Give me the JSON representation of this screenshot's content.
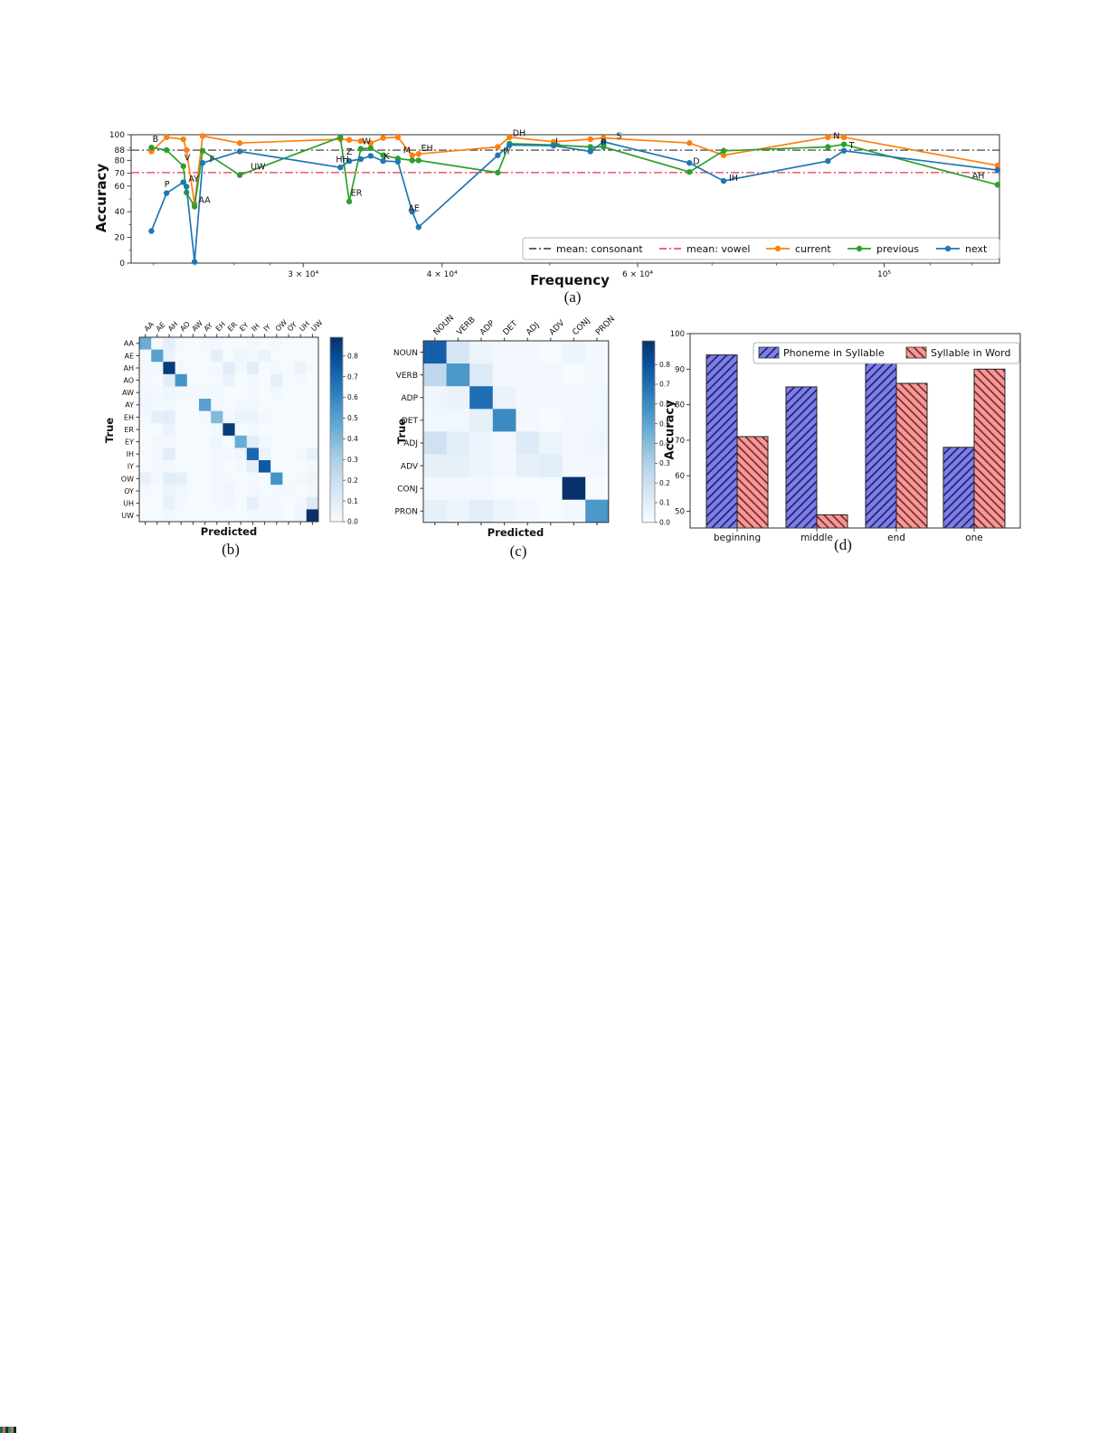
{
  "panel_a": {
    "caption": "(a)",
    "xlabel": "Frequency",
    "ylabel": "Accuracy",
    "yticks": [
      0,
      20,
      40,
      60,
      70,
      80,
      88,
      100
    ],
    "yticks_minor": [
      10,
      30,
      50,
      90
    ],
    "xticks": [
      {
        "f": 30000,
        "label": "3 × 10⁴"
      },
      {
        "f": 40000,
        "label": "4 × 10⁴"
      },
      {
        "f": 60000,
        "label": "6 × 10⁴"
      },
      {
        "f": 100000,
        "label": "10⁵"
      }
    ],
    "xticks_minor": [
      22000,
      24000,
      26000,
      28000,
      50000,
      70000,
      80000,
      90000,
      110000,
      120000
    ],
    "xlim": [
      21000,
      127000
    ],
    "ylim": [
      0,
      100
    ],
    "mean_consonant": 88,
    "mean_vowel": 70.5,
    "legend": [
      "mean: consonant",
      "mean: vowel",
      "current",
      "previous",
      "next"
    ],
    "colors": {
      "current": "#ff7f0e",
      "previous": "#2ca02c",
      "next": "#1f77b4",
      "mean_consonant": "#333333",
      "mean_vowel": "#e8324a"
    },
    "chart_data": {
      "type": "line",
      "x_frequency": [
        21900,
        22600,
        23400,
        23550,
        23950,
        24350,
        26300,
        32400,
        33000,
        33800,
        34500,
        35400,
        36500,
        37600,
        38100,
        44900,
        46000,
        50400,
        54400,
        55900,
        66800,
        71700,
        89000,
        92000,
        126500
      ],
      "series": [
        {
          "name": "current",
          "values": [
            87,
            98,
            96.5,
            88,
            46,
            99,
            93.5,
            96.5,
            96,
            95,
            93.5,
            97.5,
            98,
            84,
            85,
            90.5,
            98,
            94.5,
            96.5,
            97.5,
            93.5,
            84,
            98,
            98,
            76
          ]
        },
        {
          "name": "previous",
          "values": [
            90,
            88,
            75.5,
            55,
            44,
            87.5,
            68.5,
            98,
            48,
            89,
            89.5,
            84,
            81.5,
            80,
            80,
            70.5,
            93,
            92,
            90.5,
            90.5,
            71,
            87.5,
            90.5,
            92.5,
            61
          ]
        },
        {
          "name": "next",
          "values": [
            25,
            54.5,
            63,
            59.5,
            1,
            78,
            87,
            74.5,
            79.5,
            81,
            83.5,
            79.5,
            79,
            40,
            28,
            84,
            92,
            91.5,
            87,
            94.5,
            78,
            64,
            79.5,
            87.5,
            72.5
          ]
        }
      ],
      "annotations": [
        {
          "label": "B",
          "f": 21950,
          "acc": 94.5
        },
        {
          "label": "P",
          "f": 22500,
          "acc": 59
        },
        {
          "label": "V",
          "f": 23450,
          "acc": 80
        },
        {
          "label": "AY",
          "f": 23650,
          "acc": 63.5
        },
        {
          "label": "AA",
          "f": 24150,
          "acc": 47
        },
        {
          "label": "F",
          "f": 24700,
          "acc": 78.5
        },
        {
          "label": "UW",
          "f": 26900,
          "acc": 73
        },
        {
          "label": "HH",
          "f": 32100,
          "acc": 78.5
        },
        {
          "label": "Z",
          "f": 32800,
          "acc": 84.5
        },
        {
          "label": "ER",
          "f": 33100,
          "acc": 52.5
        },
        {
          "label": "W",
          "f": 33900,
          "acc": 92.5
        },
        {
          "label": "K",
          "f": 35450,
          "acc": 81
        },
        {
          "label": "M",
          "f": 36900,
          "acc": 85.5
        },
        {
          "label": "EH",
          "f": 38300,
          "acc": 87.5
        },
        {
          "label": "AE",
          "f": 37300,
          "acc": 40.5
        },
        {
          "label": "IY",
          "f": 45400,
          "acc": 85
        },
        {
          "label": "DH",
          "f": 46300,
          "acc": 99
        },
        {
          "label": "L",
          "f": 50600,
          "acc": 92.5
        },
        {
          "label": "R",
          "f": 55600,
          "acc": 92
        },
        {
          "label": "S",
          "f": 57400,
          "acc": 97
        },
        {
          "label": "D",
          "f": 67300,
          "acc": 77
        },
        {
          "label": "IH",
          "f": 72500,
          "acc": 64
        },
        {
          "label": "N",
          "f": 90000,
          "acc": 97
        },
        {
          "label": "T",
          "f": 93000,
          "acc": 89.5
        },
        {
          "label": "AH",
          "f": 120000,
          "acc": 66
        }
      ]
    }
  },
  "panel_b": {
    "caption": "(b)",
    "xlabel": "Predicted",
    "ylabel": "True",
    "colorbar_ticks": [
      "0.0",
      "0.1",
      "0.2",
      "0.3",
      "0.4",
      "0.5",
      "0.6",
      "0.7",
      "0.8"
    ],
    "chart_data": {
      "type": "heatmap",
      "vmax": 0.89,
      "labels": [
        "AA",
        "AE",
        "AH",
        "AO",
        "AW",
        "AY",
        "EH",
        "ER",
        "EY",
        "IH",
        "IY",
        "OW",
        "OY",
        "UH",
        "UW"
      ],
      "matrix": [
        [
          0.45,
          0.02,
          0.08,
          0.02,
          0.01,
          0.02,
          0.03,
          0.01,
          0.01,
          0.03,
          0.01,
          0.02,
          0.01,
          0.01,
          0.01
        ],
        [
          0.02,
          0.5,
          0.06,
          0.01,
          0.01,
          0.01,
          0.08,
          0.01,
          0.04,
          0.03,
          0.06,
          0.01,
          0.01,
          0.01,
          0.01
        ],
        [
          0.02,
          0.02,
          0.85,
          0.02,
          0.01,
          0.01,
          0.02,
          0.1,
          0.02,
          0.1,
          0.01,
          0.02,
          0.01,
          0.05,
          0.02
        ],
        [
          0.02,
          0.01,
          0.1,
          0.55,
          0.01,
          0.01,
          0.01,
          0.06,
          0.01,
          0.02,
          0.01,
          0.08,
          0.01,
          0.02,
          0.01
        ],
        [
          0.03,
          0.02,
          0.04,
          0.03,
          0.02,
          0.02,
          0.02,
          0.01,
          0.01,
          0.02,
          0.01,
          0.03,
          0.01,
          0.01,
          0.01
        ],
        [
          0.04,
          0.02,
          0.03,
          0.01,
          0.01,
          0.5,
          0.03,
          0.01,
          0.02,
          0.03,
          0.01,
          0.01,
          0.01,
          0.01,
          0.01
        ],
        [
          0.02,
          0.08,
          0.1,
          0.01,
          0.01,
          0.02,
          0.4,
          0.02,
          0.06,
          0.06,
          0.02,
          0.01,
          0.01,
          0.01,
          0.01
        ],
        [
          0.01,
          0.01,
          0.06,
          0.01,
          0.01,
          0.01,
          0.02,
          0.85,
          0.01,
          0.02,
          0.01,
          0.01,
          0.01,
          0.01,
          0.01
        ],
        [
          0.01,
          0.02,
          0.02,
          0.01,
          0.01,
          0.01,
          0.04,
          0.01,
          0.45,
          0.1,
          0.03,
          0.01,
          0.01,
          0.01,
          0.01
        ],
        [
          0.01,
          0.02,
          0.1,
          0.01,
          0.01,
          0.01,
          0.03,
          0.02,
          0.04,
          0.7,
          0.06,
          0.01,
          0.01,
          0.02,
          0.07
        ],
        [
          0.01,
          0.02,
          0.02,
          0.01,
          0.01,
          0.01,
          0.02,
          0.01,
          0.02,
          0.1,
          0.75,
          0.01,
          0.01,
          0.01,
          0.02
        ],
        [
          0.07,
          0.02,
          0.1,
          0.08,
          0.01,
          0.01,
          0.02,
          0.02,
          0.01,
          0.02,
          0.01,
          0.55,
          0.01,
          0.02,
          0.04
        ],
        [
          0.02,
          0.01,
          0.05,
          0.03,
          0.01,
          0.01,
          0.02,
          0.04,
          0.01,
          0.03,
          0.01,
          0.02,
          0.02,
          0.01,
          0.03
        ],
        [
          0.01,
          0.01,
          0.07,
          0.02,
          0.01,
          0.01,
          0.02,
          0.03,
          0.01,
          0.08,
          0.02,
          0.02,
          0.01,
          0.03,
          0.12
        ],
        [
          0.01,
          0.01,
          0.03,
          0.01,
          0.01,
          0.01,
          0.01,
          0.01,
          0.01,
          0.03,
          0.02,
          0.02,
          0.01,
          0.04,
          0.9
        ]
      ]
    }
  },
  "panel_c": {
    "caption": "(c)",
    "xlabel": "Predicted",
    "ylabel": "True",
    "colorbar_ticks": [
      "0.0",
      "0.1",
      "0.2",
      "0.3",
      "0.4",
      "0.5",
      "0.6",
      "0.7",
      "0.8"
    ],
    "chart_data": {
      "type": "heatmap",
      "vmax": 0.92,
      "labels": [
        "NOUN",
        "VERB",
        "ADP",
        "DET",
        "ADJ",
        "ADV",
        "CONJ",
        "PRON"
      ],
      "matrix": [
        [
          0.75,
          0.15,
          0.05,
          0.02,
          0.02,
          0.01,
          0.05,
          0.02
        ],
        [
          0.25,
          0.55,
          0.12,
          0.02,
          0.02,
          0.02,
          0.01,
          0.02
        ],
        [
          0.04,
          0.06,
          0.7,
          0.06,
          0.02,
          0.02,
          0.02,
          0.03
        ],
        [
          0.03,
          0.03,
          0.08,
          0.6,
          0.02,
          0.01,
          0.02,
          0.03
        ],
        [
          0.18,
          0.1,
          0.05,
          0.02,
          0.12,
          0.05,
          0.02,
          0.04
        ],
        [
          0.08,
          0.08,
          0.05,
          0.02,
          0.08,
          0.1,
          0.02,
          0.02
        ],
        [
          0.02,
          0.02,
          0.02,
          0.01,
          0.01,
          0.01,
          0.92,
          0.01
        ],
        [
          0.08,
          0.05,
          0.1,
          0.05,
          0.02,
          0.01,
          0.02,
          0.55
        ]
      ]
    }
  },
  "panel_d": {
    "caption": "(d)",
    "ylabel": "Accuracy",
    "yticks": [
      50,
      60,
      70,
      80,
      90,
      100
    ],
    "ylim": [
      45.3,
      100
    ],
    "legend": [
      "Phoneme in Syllable",
      "Syllable in Word"
    ],
    "colors": {
      "bar_blue": "#7d7fe3",
      "bar_blue_hatch": "#20207a",
      "bar_red": "#f09b9b",
      "bar_red_hatch": "#8c2222"
    },
    "chart_data": {
      "type": "bar",
      "categories": [
        "beginning",
        "middle",
        "end",
        "one"
      ],
      "series": [
        {
          "name": "Phoneme in Syllable",
          "values": [
            94,
            85,
            93,
            68
          ]
        },
        {
          "name": "Syllable in Word",
          "values": [
            71,
            49,
            86,
            90
          ]
        }
      ]
    }
  }
}
